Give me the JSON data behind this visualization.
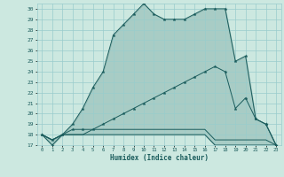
{
  "xlabel": "Humidex (Indice chaleur)",
  "xlim": [
    -0.5,
    23.5
  ],
  "ylim": [
    17,
    30.5
  ],
  "yticks": [
    17,
    18,
    19,
    20,
    21,
    22,
    23,
    24,
    25,
    26,
    27,
    28,
    29,
    30
  ],
  "xticks": [
    0,
    1,
    2,
    3,
    4,
    5,
    6,
    7,
    8,
    9,
    10,
    11,
    12,
    13,
    14,
    15,
    16,
    17,
    18,
    19,
    20,
    21,
    22,
    23
  ],
  "background_color": "#cce8e0",
  "grid_color": "#99cccc",
  "line_color": "#1a5c5c",
  "line1_y": [
    18.0,
    17.0,
    18.0,
    19.0,
    20.5,
    22.5,
    24.0,
    27.5,
    28.5,
    29.5,
    30.5,
    29.5,
    29.0,
    29.0,
    29.0,
    29.5,
    30.0,
    30.0,
    30.0,
    25.0,
    25.5,
    19.5,
    19.0,
    17.0
  ],
  "line2_y": [
    18.0,
    17.5,
    18.0,
    18.5,
    18.5,
    18.5,
    19.0,
    19.5,
    20.0,
    20.5,
    21.0,
    21.5,
    22.0,
    22.5,
    23.0,
    23.5,
    24.0,
    24.5,
    24.0,
    20.5,
    21.5,
    19.5,
    19.0,
    17.0
  ],
  "line3_y": [
    18.0,
    17.5,
    18.0,
    18.0,
    18.0,
    18.5,
    18.5,
    18.5,
    18.5,
    18.5,
    18.5,
    18.5,
    18.5,
    18.5,
    18.5,
    18.5,
    18.5,
    17.5,
    17.5,
    17.5,
    17.5,
    17.5,
    17.5,
    17.0
  ],
  "line4_y": [
    18.0,
    17.5,
    18.0,
    18.0,
    18.0,
    18.0,
    18.0,
    18.0,
    18.0,
    18.0,
    18.0,
    18.0,
    18.0,
    18.0,
    18.0,
    18.0,
    18.0,
    17.0,
    17.0,
    17.0,
    17.0,
    17.0,
    17.0,
    17.0
  ]
}
